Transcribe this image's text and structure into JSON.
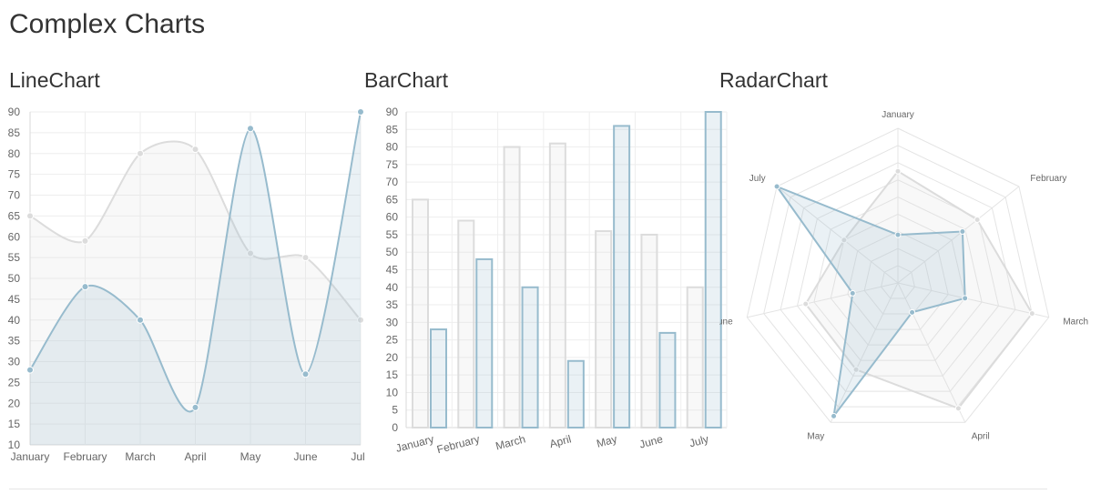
{
  "page": {
    "title": "Complex Charts"
  },
  "chart_data": [
    {
      "type": "line",
      "title": "LineChart",
      "categories": [
        "January",
        "February",
        "March",
        "April",
        "May",
        "June",
        "July"
      ],
      "yticks": [
        "10",
        "15",
        "20",
        "25",
        "30",
        "35",
        "40",
        "45",
        "50",
        "55",
        "60",
        "65",
        "70",
        "75",
        "80",
        "85",
        "90"
      ],
      "ylim": [
        10,
        90
      ],
      "grid": true,
      "series": [
        {
          "values": [
            65,
            59,
            80,
            81,
            56,
            55,
            40
          ],
          "color": "#dcdcdc",
          "fill": "rgba(220,220,220,0.2)"
        },
        {
          "values": [
            28,
            48,
            40,
            19,
            86,
            27,
            90
          ],
          "color": "#97bbcd",
          "fill": "rgba(151,187,205,0.2)"
        }
      ]
    },
    {
      "type": "bar",
      "title": "BarChart",
      "categories": [
        "January",
        "February",
        "March",
        "April",
        "May",
        "June",
        "July"
      ],
      "yticks": [
        "0",
        "5",
        "10",
        "15",
        "20",
        "25",
        "30",
        "35",
        "40",
        "45",
        "50",
        "55",
        "60",
        "65",
        "70",
        "75",
        "80",
        "85",
        "90"
      ],
      "ylim": [
        0,
        90
      ],
      "grid": true,
      "series": [
        {
          "values": [
            65,
            59,
            80,
            81,
            56,
            55,
            40
          ],
          "color": "#dcdcdc",
          "fill": "rgba(220,220,220,0.2)"
        },
        {
          "values": [
            28,
            48,
            40,
            19,
            86,
            27,
            90
          ],
          "color": "#97bbcd",
          "fill": "rgba(151,187,205,0.2)"
        }
      ]
    },
    {
      "type": "radar",
      "title": "RadarChart",
      "categories": [
        "January",
        "February",
        "March",
        "April",
        "May",
        "June",
        "July"
      ],
      "range": [
        0,
        90
      ],
      "series": [
        {
          "values": [
            65,
            59,
            80,
            81,
            56,
            55,
            40
          ],
          "color": "#dcdcdc",
          "fill": "rgba(220,220,220,0.2)"
        },
        {
          "values": [
            28,
            48,
            40,
            19,
            86,
            27,
            90
          ],
          "color": "#97bbcd",
          "fill": "rgba(151,187,205,0.2)"
        }
      ]
    }
  ]
}
